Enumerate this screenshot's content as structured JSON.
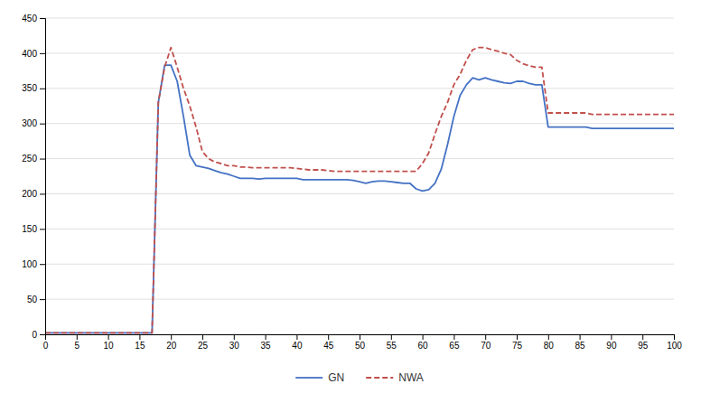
{
  "chart_data": {
    "type": "line",
    "x": [
      0,
      1,
      2,
      3,
      4,
      5,
      6,
      7,
      8,
      9,
      10,
      11,
      12,
      13,
      14,
      15,
      16,
      17,
      18,
      19,
      20,
      21,
      22,
      23,
      24,
      25,
      26,
      27,
      28,
      29,
      30,
      31,
      32,
      33,
      34,
      35,
      36,
      37,
      38,
      39,
      40,
      41,
      42,
      43,
      44,
      45,
      46,
      47,
      48,
      49,
      50,
      51,
      52,
      53,
      54,
      55,
      56,
      57,
      58,
      59,
      60,
      61,
      62,
      63,
      64,
      65,
      66,
      67,
      68,
      69,
      70,
      71,
      72,
      73,
      74,
      75,
      76,
      77,
      78,
      79,
      80,
      81,
      82,
      83,
      84,
      85,
      86,
      87,
      88,
      89,
      90,
      91,
      92,
      93,
      94,
      95,
      96,
      97,
      98,
      99,
      100
    ],
    "series": [
      {
        "name": "GN",
        "color": "#4472C4",
        "line_style": "solid",
        "values": [
          2,
          2,
          2,
          2,
          2,
          2,
          2,
          2,
          2,
          2,
          2,
          2,
          2,
          2,
          2,
          2,
          2,
          2,
          330,
          383,
          383,
          360,
          310,
          255,
          240,
          238,
          236,
          233,
          230,
          228,
          225,
          222,
          222,
          222,
          221,
          222,
          222,
          222,
          222,
          222,
          222,
          220,
          220,
          220,
          220,
          220,
          220,
          220,
          220,
          219,
          217,
          215,
          217,
          218,
          218,
          217,
          216,
          215,
          215,
          207,
          204,
          206,
          215,
          235,
          270,
          310,
          340,
          355,
          365,
          362,
          365,
          362,
          360,
          358,
          357,
          360,
          360,
          357,
          355,
          355,
          295,
          295,
          295,
          295,
          295,
          295,
          295,
          293,
          293,
          293,
          293,
          293,
          293,
          293,
          293,
          293,
          293,
          293,
          293,
          293,
          293
        ]
      },
      {
        "name": "NWA",
        "color": "#C0504D",
        "line_style": "dashed",
        "values": [
          2,
          2,
          2,
          2,
          2,
          2,
          2,
          2,
          2,
          2,
          2,
          2,
          2,
          2,
          2,
          2,
          2,
          2,
          330,
          380,
          408,
          380,
          350,
          325,
          295,
          260,
          250,
          245,
          243,
          240,
          240,
          238,
          238,
          237,
          237,
          237,
          237,
          237,
          237,
          237,
          236,
          235,
          234,
          234,
          234,
          233,
          232,
          232,
          232,
          232,
          232,
          232,
          232,
          232,
          232,
          232,
          232,
          232,
          232,
          232,
          243,
          258,
          285,
          310,
          330,
          355,
          370,
          390,
          405,
          408,
          408,
          405,
          403,
          400,
          398,
          390,
          385,
          382,
          380,
          380,
          315,
          315,
          315,
          315,
          315,
          315,
          315,
          313,
          313,
          313,
          313,
          313,
          313,
          313,
          313,
          313,
          313,
          313,
          313,
          313,
          313
        ]
      }
    ],
    "xlim": [
      0,
      100
    ],
    "ylim": [
      0,
      450
    ],
    "xticks": [
      0,
      5,
      10,
      15,
      20,
      25,
      30,
      35,
      40,
      45,
      50,
      55,
      60,
      65,
      70,
      75,
      80,
      85,
      90,
      95,
      100
    ],
    "yticks": [
      0,
      50,
      100,
      150,
      200,
      250,
      300,
      350,
      400,
      450
    ],
    "grid": true,
    "legend": "bottom"
  }
}
